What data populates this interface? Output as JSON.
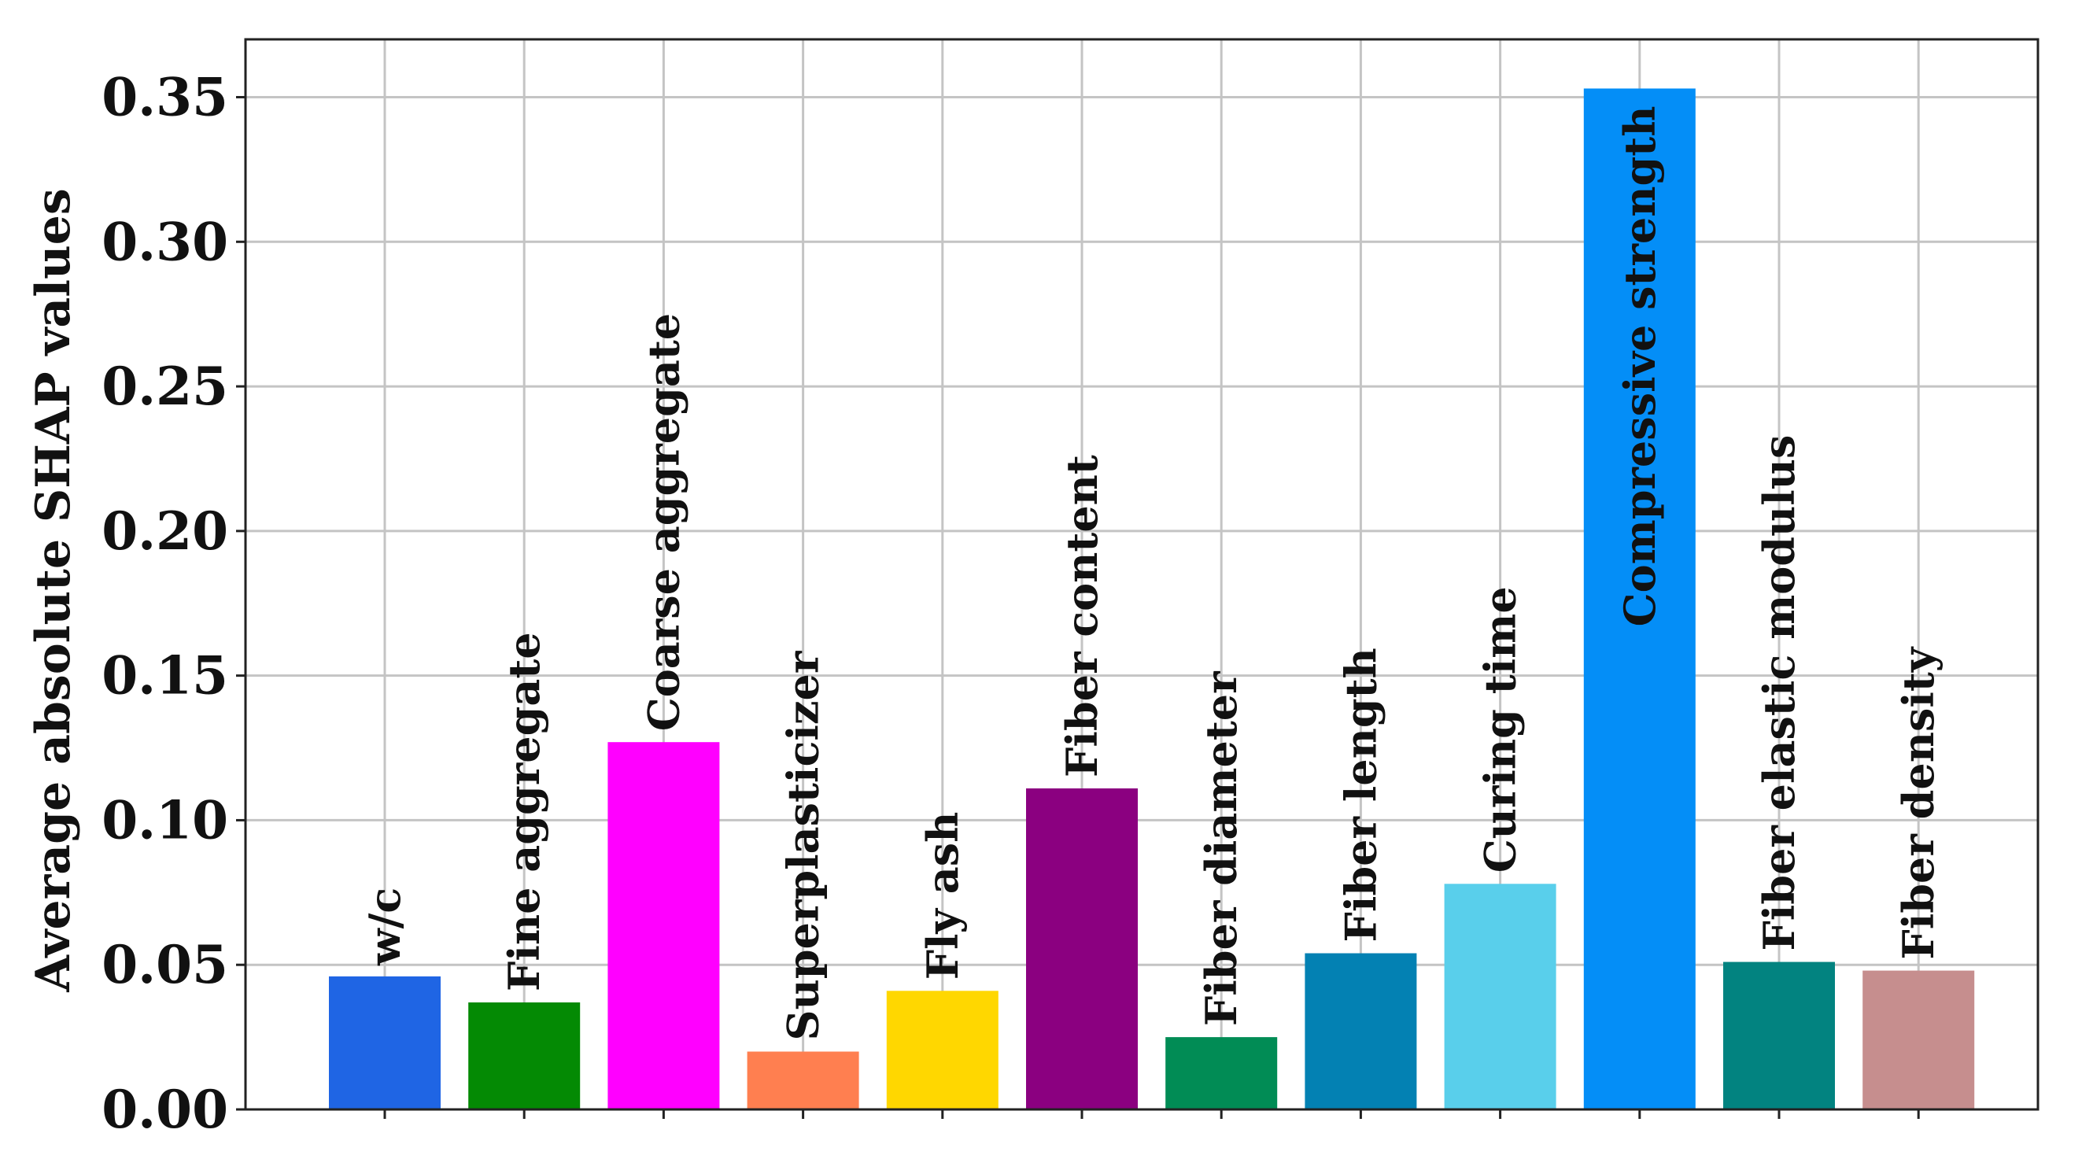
{
  "chart_data": {
    "type": "bar",
    "title": "",
    "xlabel": "",
    "ylabel": "Average absolute SHAP values",
    "ylim": [
      0,
      0.37
    ],
    "yticks": [
      0.0,
      0.05,
      0.1,
      0.15,
      0.2,
      0.25,
      0.3,
      0.35
    ],
    "ytick_labels": [
      "0.00",
      "0.05",
      "0.10",
      "0.15",
      "0.20",
      "0.25",
      "0.30",
      "0.35"
    ],
    "grid": true,
    "legend": "none",
    "categories": [
      "w/c",
      "Fine aggregate",
      "Coarse aggregate",
      "Superplasticizer",
      "Fly ash",
      "Fiber content",
      "Fiber diameter",
      "Fiber length",
      "Curing time",
      "Compressive strength",
      "Fiber elastic modulus",
      "Fiber density"
    ],
    "values": [
      0.046,
      0.037,
      0.127,
      0.02,
      0.041,
      0.111,
      0.025,
      0.054,
      0.078,
      0.353,
      0.051,
      0.048
    ],
    "colors": [
      "#1f65e4",
      "#048a04",
      "#ff00ff",
      "#ff7f50",
      "#ffd700",
      "#8b0080",
      "#018c55",
      "#0381b3",
      "#59cfeb",
      "#048ef7",
      "#028380",
      "#c68e8e"
    ]
  }
}
